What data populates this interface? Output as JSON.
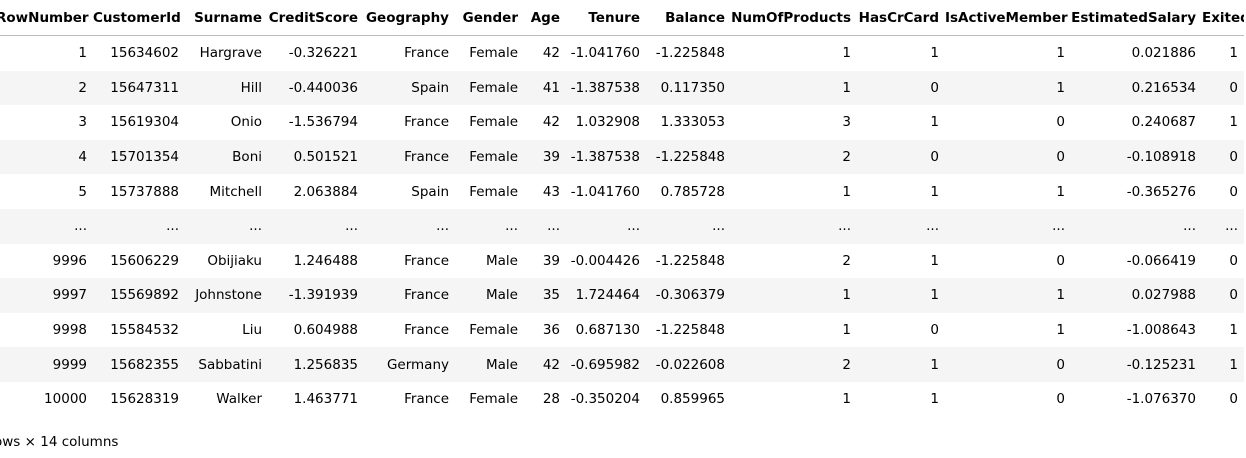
{
  "table": {
    "columns": [
      "RowNumber",
      "CustomerId",
      "Surname",
      "CreditScore",
      "Geography",
      "Gender",
      "Age",
      "Tenure",
      "Balance",
      "NumOfProducts",
      "HasCrCard",
      "IsActiveMember",
      "EstimatedSalary",
      "Exited"
    ],
    "rows": [
      [
        "1",
        "15634602",
        "Hargrave",
        "-0.326221",
        "France",
        "Female",
        "42",
        "-1.041760",
        "-1.225848",
        "1",
        "1",
        "1",
        "0.021886",
        "1"
      ],
      [
        "2",
        "15647311",
        "Hill",
        "-0.440036",
        "Spain",
        "Female",
        "41",
        "-1.387538",
        "0.117350",
        "1",
        "0",
        "1",
        "0.216534",
        "0"
      ],
      [
        "3",
        "15619304",
        "Onio",
        "-1.536794",
        "France",
        "Female",
        "42",
        "1.032908",
        "1.333053",
        "3",
        "1",
        "0",
        "0.240687",
        "1"
      ],
      [
        "4",
        "15701354",
        "Boni",
        "0.501521",
        "France",
        "Female",
        "39",
        "-1.387538",
        "-1.225848",
        "2",
        "0",
        "0",
        "-0.108918",
        "0"
      ],
      [
        "5",
        "15737888",
        "Mitchell",
        "2.063884",
        "Spain",
        "Female",
        "43",
        "-1.041760",
        "0.785728",
        "1",
        "1",
        "1",
        "-0.365276",
        "0"
      ],
      [
        "...",
        "...",
        "...",
        "...",
        "...",
        "...",
        "...",
        "...",
        "...",
        "...",
        "...",
        "...",
        "...",
        "..."
      ],
      [
        "9996",
        "15606229",
        "Obijiaku",
        "1.246488",
        "France",
        "Male",
        "39",
        "-0.004426",
        "-1.225848",
        "2",
        "1",
        "0",
        "-0.066419",
        "0"
      ],
      [
        "9997",
        "15569892",
        "Johnstone",
        "-1.391939",
        "France",
        "Male",
        "35",
        "1.724464",
        "-0.306379",
        "1",
        "1",
        "1",
        "0.027988",
        "0"
      ],
      [
        "9998",
        "15584532",
        "Liu",
        "0.604988",
        "France",
        "Female",
        "36",
        "0.687130",
        "-1.225848",
        "1",
        "0",
        "1",
        "-1.008643",
        "1"
      ],
      [
        "9999",
        "15682355",
        "Sabbatini",
        "1.256835",
        "Germany",
        "Male",
        "42",
        "-0.695982",
        "-0.022608",
        "2",
        "1",
        "0",
        "-0.125231",
        "1"
      ],
      [
        "10000",
        "15628319",
        "Walker",
        "1.463771",
        "France",
        "Female",
        "28",
        "-0.350204",
        "0.859965",
        "1",
        "1",
        "0",
        "-1.076370",
        "0"
      ]
    ]
  },
  "footer": {
    "text": "ows × 14 columns"
  }
}
